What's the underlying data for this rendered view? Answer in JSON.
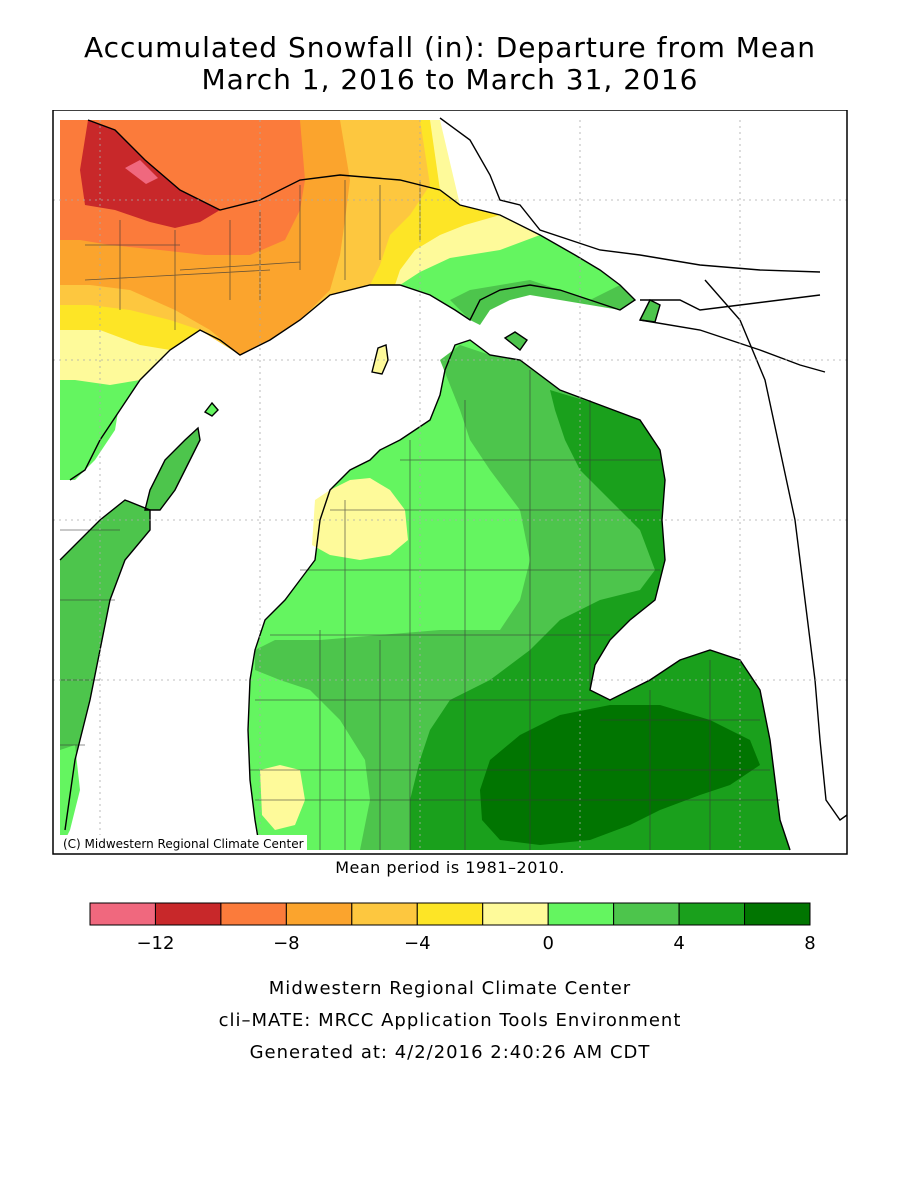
{
  "title": {
    "line1": "Accumulated Snowfall (in): Departure from Mean",
    "line2": "March 1, 2016 to March 31, 2016"
  },
  "map": {
    "credit": "(C) Midwestern Regional Climate Center",
    "mean_period": "Mean period is 1981–2010."
  },
  "legend": {
    "colors": [
      "#f0687e",
      "#c8282a",
      "#fb7b3b",
      "#fba42d",
      "#fdc73f",
      "#fde526",
      "#fefa9a",
      "#64f560",
      "#4dc54c",
      "#1aa01c",
      "#017501"
    ],
    "bins": [
      {
        "from": -14,
        "to": -12
      },
      {
        "from": -12,
        "to": -10
      },
      {
        "from": -10,
        "to": -8
      },
      {
        "from": -8,
        "to": -6
      },
      {
        "from": -6,
        "to": -4
      },
      {
        "from": -4,
        "to": -2
      },
      {
        "from": -2,
        "to": 0
      },
      {
        "from": 0,
        "to": 2
      },
      {
        "from": 2,
        "to": 4
      },
      {
        "from": 4,
        "to": 6
      },
      {
        "from": 6,
        "to": 8
      }
    ],
    "tick_values": [
      -12,
      -8,
      -4,
      0,
      4,
      8
    ],
    "tick_labels": [
      "−12",
      "−8",
      "−4",
      "0",
      "4",
      "8"
    ]
  },
  "footer": {
    "line1": "Midwestern Regional Climate Center",
    "line2": "cli–MATE: MRCC Application Tools Environment",
    "line3": "Generated at: 4/2/2016 2:40:26 AM CDT"
  }
}
